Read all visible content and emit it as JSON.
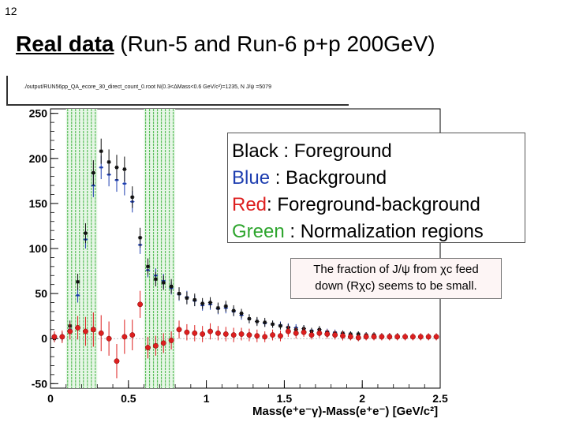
{
  "slide": {
    "number": "12",
    "title_emph": "Real data",
    "title_rest": " (Run-5 and Run-6 p+p 200GeV)"
  },
  "plot_header": "./output/RUN56pp_QA_ecore_30_direct_count_0.root N(0.3<ΔMass<0.6 GeV/c²)=1235, N J/ψ =5079",
  "legend": {
    "black_key": "Black",
    "black_val": " : Foreground",
    "blue_key": "Blue",
    "blue_val": " : Background",
    "red_key": "Red",
    "red_val": ": Foreground-background",
    "green_key": "Green",
    "green_val": " : Normalization regions"
  },
  "note": {
    "line1": "The fraction of J/ψ from χc feed",
    "line2": "down (Rχc) seems to be small."
  },
  "colors": {
    "foreground": "#111111",
    "background": "#1f3fb0",
    "subtracted": "#dd1f1f",
    "normalization": "#2ea52e"
  },
  "chart_data": {
    "type": "scatter",
    "xlabel": "Mass(e⁺e⁻γ)-Mass(e⁺e⁻) [GeV/c²]",
    "ylabel": "",
    "xlim": [
      0,
      2.5
    ],
    "ylim": [
      -55,
      255
    ],
    "x_ticks": [
      0,
      0.5,
      1,
      1.5,
      2,
      2.5
    ],
    "x_tick_labels": [
      "0",
      "0.5",
      "1",
      "1.5",
      "2",
      "2.5"
    ],
    "y_ticks": [
      -50,
      0,
      50,
      100,
      150,
      200,
      250
    ],
    "y_tick_labels": [
      "-50",
      "0",
      "50",
      "100",
      "150",
      "200",
      "250"
    ],
    "normalization_regions": [
      [
        0.1,
        0.3
      ],
      [
        0.6,
        0.8
      ]
    ],
    "series": [
      {
        "key": "foreground",
        "x": [
          0.025,
          0.075,
          0.125,
          0.175,
          0.225,
          0.275,
          0.325,
          0.375,
          0.425,
          0.475,
          0.525,
          0.575,
          0.625,
          0.675,
          0.725,
          0.775,
          0.825,
          0.875,
          0.925,
          0.975,
          1.025,
          1.075,
          1.125,
          1.175,
          1.225,
          1.275,
          1.325,
          1.375,
          1.425,
          1.475,
          1.525,
          1.575,
          1.625,
          1.675,
          1.725,
          1.775,
          1.825,
          1.875,
          1.925,
          1.975,
          2.025,
          2.075,
          2.125,
          2.175,
          2.225,
          2.275,
          2.325,
          2.375,
          2.425,
          2.475
        ],
        "y": [
          0,
          2,
          14,
          63,
          117,
          184,
          208,
          196,
          190,
          188,
          157,
          112,
          80,
          66,
          62,
          58,
          50,
          45,
          43,
          39,
          40,
          34,
          36,
          31,
          28,
          22,
          19,
          18,
          16,
          14,
          12,
          10,
          11,
          8,
          10,
          7,
          6,
          6,
          5,
          5,
          4,
          4,
          3,
          3,
          3,
          2,
          2,
          2,
          2,
          2
        ],
        "err": [
          4,
          5,
          6,
          9,
          11,
          14,
          14,
          14,
          14,
          14,
          12,
          11,
          9,
          8,
          8,
          8,
          7,
          7,
          7,
          6,
          6,
          6,
          6,
          6,
          5,
          5,
          5,
          5,
          4,
          4,
          4,
          4,
          4,
          4,
          4,
          3,
          3,
          3,
          3,
          3,
          3,
          3,
          3,
          3,
          3,
          3,
          3,
          3,
          3,
          3
        ]
      },
      {
        "key": "background",
        "x": [
          0.025,
          0.075,
          0.125,
          0.175,
          0.225,
          0.275,
          0.325,
          0.375,
          0.425,
          0.475,
          0.525,
          0.575,
          0.625,
          0.675,
          0.725,
          0.775,
          0.825,
          0.875,
          0.925,
          0.975,
          1.025,
          1.075,
          1.125,
          1.175,
          1.225,
          1.275,
          1.325,
          1.375,
          1.425,
          1.475,
          1.525,
          1.575,
          1.625,
          1.675,
          1.725,
          1.775,
          1.825,
          1.875,
          1.925,
          1.975,
          2.025,
          2.075,
          2.125,
          2.175,
          2.225,
          2.275,
          2.325,
          2.375,
          2.425,
          2.475
        ],
        "y": [
          0,
          1,
          10,
          48,
          110,
          170,
          190,
          182,
          176,
          172,
          152,
          104,
          76,
          70,
          64,
          56,
          49,
          46,
          42,
          37,
          38,
          33,
          34,
          30,
          26,
          22,
          19,
          17,
          16,
          15,
          13,
          12,
          11,
          9,
          10,
          8,
          7,
          6,
          5,
          5,
          4,
          4,
          3,
          3,
          3,
          2,
          2,
          2,
          2,
          2
        ],
        "err": [
          3,
          4,
          5,
          8,
          10,
          13,
          13,
          13,
          13,
          13,
          12,
          10,
          8,
          8,
          8,
          7,
          7,
          7,
          6,
          6,
          6,
          6,
          6,
          5,
          5,
          5,
          4,
          4,
          4,
          4,
          4,
          4,
          4,
          3,
          3,
          3,
          3,
          3,
          3,
          3,
          3,
          3,
          3,
          3,
          3,
          3,
          3,
          3,
          3,
          3
        ]
      },
      {
        "key": "subtracted",
        "x": [
          0.025,
          0.075,
          0.125,
          0.175,
          0.225,
          0.275,
          0.325,
          0.375,
          0.425,
          0.475,
          0.525,
          0.575,
          0.625,
          0.675,
          0.725,
          0.775,
          0.825,
          0.875,
          0.925,
          0.975,
          1.025,
          1.075,
          1.125,
          1.175,
          1.225,
          1.275,
          1.325,
          1.375,
          1.425,
          1.475,
          1.525,
          1.575,
          1.625,
          1.675,
          1.725,
          1.775,
          1.825,
          1.875,
          1.925,
          1.975,
          2.025,
          2.075,
          2.125,
          2.175,
          2.225,
          2.275,
          2.325,
          2.375,
          2.425,
          2.475
        ],
        "y": [
          2,
          2,
          8,
          12,
          8,
          10,
          6,
          0,
          -25,
          2,
          4,
          38,
          -10,
          -8,
          -5,
          -2,
          10,
          7,
          6,
          5,
          8,
          6,
          5,
          4,
          5,
          4,
          3,
          2,
          4,
          3,
          8,
          6,
          7,
          4,
          6,
          5,
          4,
          3,
          2,
          1,
          2,
          2,
          2,
          2,
          2,
          2,
          2,
          2,
          2,
          2
        ],
        "err": [
          6,
          7,
          9,
          13,
          16,
          19,
          20,
          19,
          19,
          19,
          17,
          15,
          12,
          11,
          11,
          10,
          10,
          9,
          9,
          9,
          9,
          8,
          8,
          8,
          7,
          7,
          7,
          6,
          6,
          6,
          6,
          6,
          5,
          5,
          5,
          5,
          5,
          5,
          4,
          4,
          4,
          4,
          4,
          4,
          4,
          4,
          4,
          4,
          4,
          4
        ]
      }
    ]
  }
}
